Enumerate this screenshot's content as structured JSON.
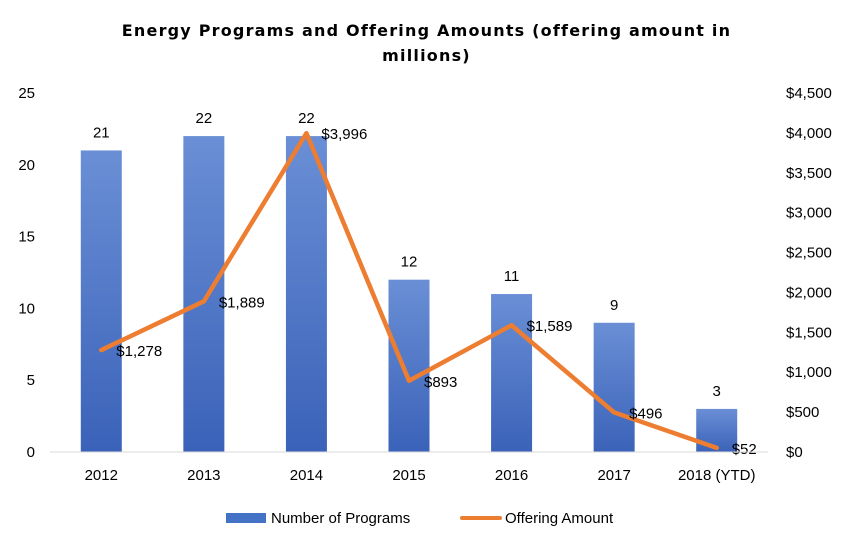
{
  "chart_data": {
    "type": "bar",
    "title": "Energy Programs and Offering Amounts (offering amount in millions)",
    "categories": [
      "2012",
      "2013",
      "2014",
      "2015",
      "2016",
      "2017",
      "2018 (YTD)"
    ],
    "series": [
      {
        "name": "Number of Programs",
        "type": "bar",
        "axis": "left",
        "color": "#4472C4",
        "values": [
          21,
          22,
          22,
          12,
          11,
          9,
          3
        ],
        "labels": [
          "21",
          "22",
          "22",
          "12",
          "11",
          "9",
          "3"
        ]
      },
      {
        "name": "Offering Amount",
        "type": "line",
        "axis": "right",
        "color": "#ED7D31",
        "values": [
          1278,
          1889,
          3996,
          893,
          1589,
          496,
          52
        ],
        "labels": [
          "$1,278",
          "$1,889",
          "$3,996",
          "$893",
          "$1,589",
          "$496",
          "$52"
        ]
      }
    ],
    "y_left": {
      "min": 0,
      "max": 25,
      "ticks": [
        "0",
        "5",
        "10",
        "15",
        "20",
        "25"
      ]
    },
    "y_right": {
      "min": 0,
      "max": 4500,
      "ticks": [
        "$0",
        "$500",
        "$1,000",
        "$1,500",
        "$2,000",
        "$2,500",
        "$3,000",
        "$3,500",
        "$4,000",
        "$4,500"
      ]
    },
    "grid": false,
    "legend_position": "bottom"
  }
}
